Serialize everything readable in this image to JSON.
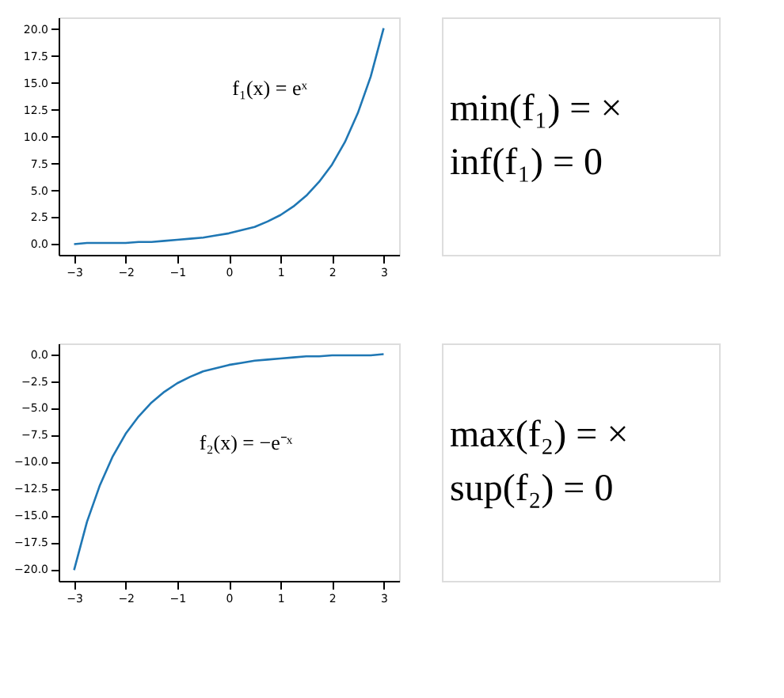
{
  "chart_data": [
    {
      "type": "line",
      "grid": false,
      "x": [
        -3,
        -2.75,
        -2.5,
        -2.25,
        -2,
        -1.75,
        -1.5,
        -1.25,
        -1,
        -0.75,
        -0.5,
        -0.25,
        0,
        0.25,
        0.5,
        0.75,
        1,
        1.25,
        1.5,
        1.75,
        2,
        2.25,
        2.5,
        2.75,
        3
      ],
      "series": [
        {
          "color": "#1f77b4",
          "values": [
            0.0,
            0.1,
            0.1,
            0.1,
            0.1,
            0.2,
            0.2,
            0.3,
            0.4,
            0.5,
            0.6,
            0.8,
            1.0,
            1.3,
            1.6,
            2.1,
            2.7,
            3.5,
            4.5,
            5.8,
            7.4,
            9.5,
            12.2,
            15.6,
            20.1
          ]
        }
      ],
      "xlim": [
        -3.3,
        3.3
      ],
      "ylim": [
        -1.0,
        21.1
      ],
      "xticks": [
        {
          "value": -3,
          "label": "−3"
        },
        {
          "value": -2,
          "label": "−2"
        },
        {
          "value": -1,
          "label": "−1"
        },
        0,
        1,
        2,
        3
      ],
      "yticks": [
        {
          "value": 0,
          "label": "0.0"
        },
        {
          "value": 2.5,
          "label": "2.5"
        },
        {
          "value": 5,
          "label": "5.0"
        },
        {
          "value": 7.5,
          "label": "7.5"
        },
        {
          "value": 10,
          "label": "10.0"
        },
        {
          "value": 12.5,
          "label": "12.5"
        },
        {
          "value": 15,
          "label": "15.0"
        },
        {
          "value": 17.5,
          "label": "17.5"
        },
        {
          "value": 20,
          "label": "20.0"
        }
      ],
      "annotations": [
        "f₁(x) = eˣ",
        "min(f₁) = ×",
        "inf(f₁) = 0"
      ]
    },
    {
      "type": "line",
      "grid": false,
      "x": [
        -3,
        -2.75,
        -2.5,
        -2.25,
        -2,
        -1.75,
        -1.5,
        -1.25,
        -1,
        -0.75,
        -0.5,
        -0.25,
        0,
        0.25,
        0.5,
        0.75,
        1,
        1.25,
        1.5,
        1.75,
        2,
        2.25,
        2.5,
        2.75,
        3
      ],
      "series": [
        {
          "color": "#1f77b4",
          "values": [
            -20.1,
            -15.6,
            -12.2,
            -9.5,
            -7.4,
            -5.8,
            -4.5,
            -3.5,
            -2.7,
            -2.1,
            -1.6,
            -1.3,
            -1.0,
            -0.8,
            -0.6,
            -0.5,
            -0.4,
            -0.3,
            -0.2,
            -0.2,
            -0.1,
            -0.1,
            -0.1,
            -0.1,
            0.0
          ]
        }
      ],
      "xlim": [
        -3.3,
        3.3
      ],
      "ylim": [
        -21.1,
        1.0
      ],
      "xticks": [
        {
          "value": -3,
          "label": "−3"
        },
        {
          "value": -2,
          "label": "−2"
        },
        {
          "value": -1,
          "label": "−1"
        },
        0,
        1,
        2,
        3
      ],
      "yticks": [
        {
          "value": 0,
          "label": "0.0"
        },
        {
          "value": -2.5,
          "label": "−2.5"
        },
        {
          "value": -5,
          "label": "−5.0"
        },
        {
          "value": -7.5,
          "label": "−7.5"
        },
        {
          "value": -10,
          "label": "−10.0"
        },
        {
          "value": -12.5,
          "label": "−12.5"
        },
        {
          "value": -15,
          "label": "−15.0"
        },
        {
          "value": -17.5,
          "label": "−17.5"
        },
        {
          "value": -20,
          "label": "−20.0"
        }
      ],
      "annotations": [
        "f₂(x) = −e⁻ˣ",
        "max(f₂) = ×",
        "sup(f₂) = 0"
      ]
    }
  ]
}
